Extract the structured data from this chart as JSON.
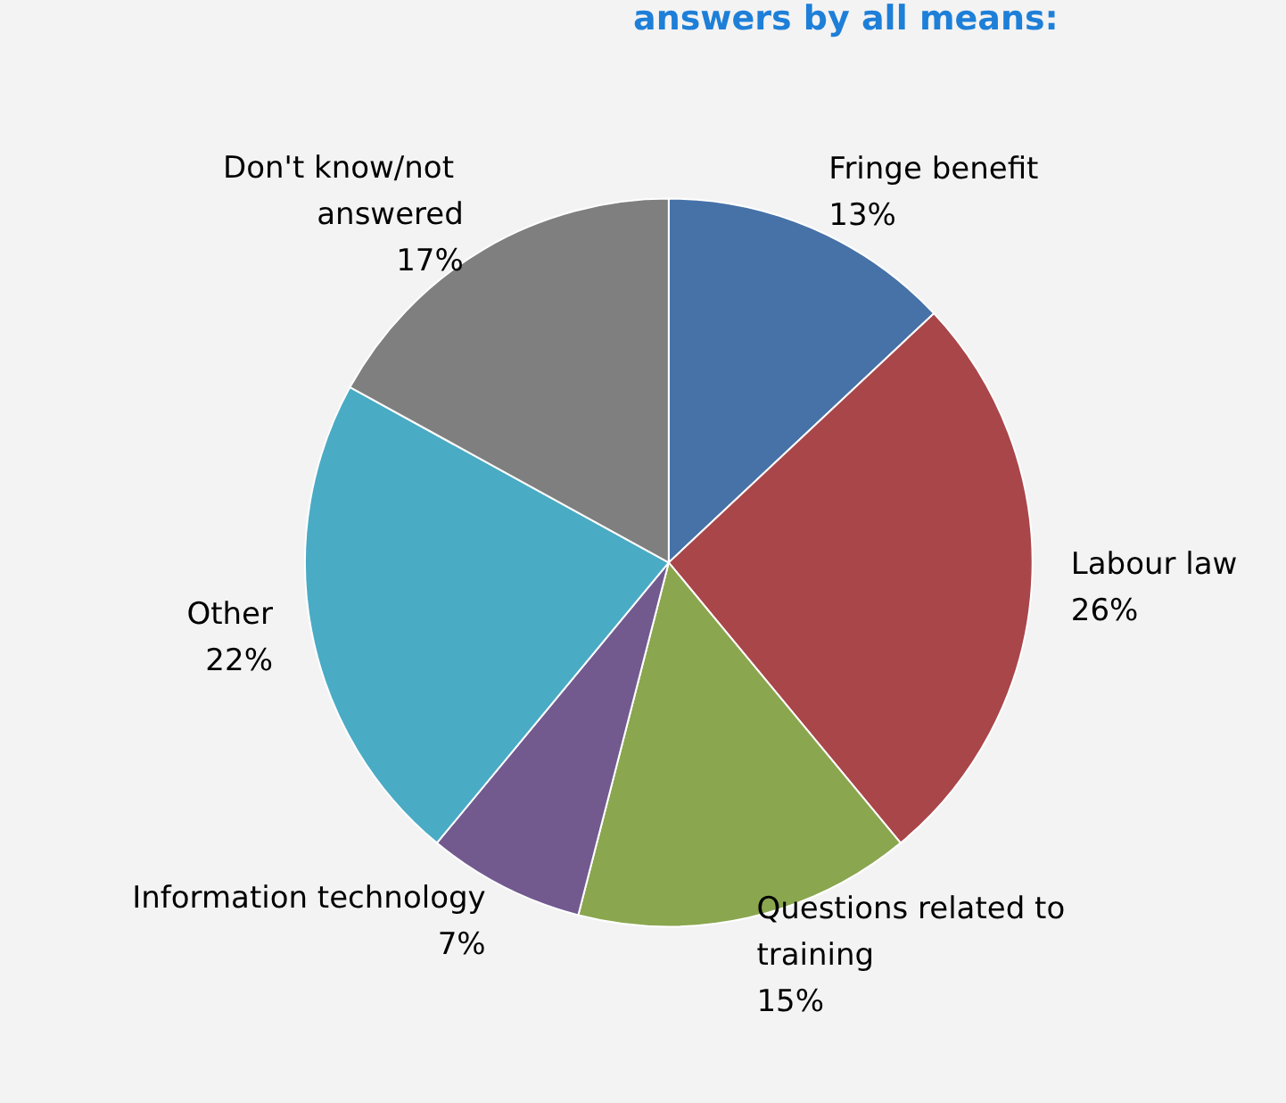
{
  "chart_data": {
    "type": "pie",
    "title": "answers by all means:",
    "categories": [
      "Fringe benefit",
      "Labour law",
      "Questions related to training",
      "Information technology",
      "Other",
      "Don't know/not answered"
    ],
    "values": [
      13,
      26,
      15,
      7,
      22,
      17
    ],
    "colors": [
      "#4672a8",
      "#a9464a",
      "#8aa64f",
      "#725a8f",
      "#4aabc5",
      "#7f7f7f"
    ],
    "value_labels": [
      "13%",
      "26%",
      "15%",
      "7%",
      "22%",
      "17%"
    ],
    "legend": false
  }
}
